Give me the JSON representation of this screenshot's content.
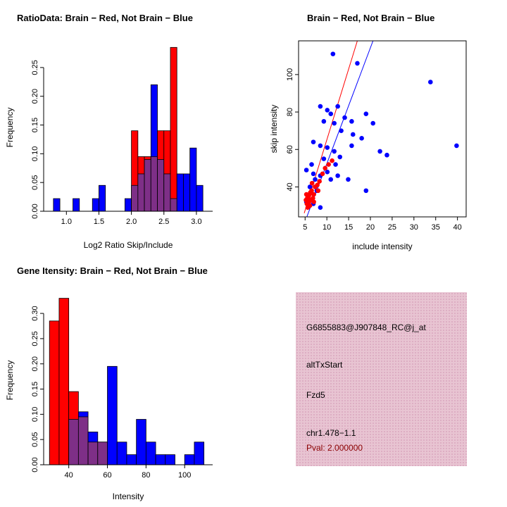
{
  "colors": {
    "red": "#FF0000",
    "blue": "#0000FF",
    "overlap": "#7E2F87",
    "axis": "#000000"
  },
  "chart_data": [
    {
      "id": "ratio_hist",
      "type": "bar",
      "title": "RatioData: Brain − Red, Not Brain − Blue",
      "xlabel": "Log2 Ratio Skip/Include",
      "ylabel": "Frequency",
      "xlim": [
        0.65,
        3.25
      ],
      "ylim": [
        0,
        0.2915
      ],
      "bin_width": 0.1,
      "xticks": [
        [
          1.0,
          "1.0"
        ],
        [
          1.5,
          "1.5"
        ],
        [
          2.0,
          "2.0"
        ],
        [
          2.5,
          "2.5"
        ],
        [
          3.0,
          "3.0"
        ]
      ],
      "yticks": [
        [
          0,
          "0.00"
        ],
        [
          0.05,
          "0.05"
        ],
        [
          0.1,
          "0.10"
        ],
        [
          0.15,
          "0.15"
        ],
        [
          0.2,
          "0.20"
        ],
        [
          0.25,
          "0.25"
        ]
      ],
      "series": [
        {
          "name": "Not Brain",
          "color": "blue",
          "bins": [
            [
              0.8,
              0.022
            ],
            [
              1.1,
              0.022
            ],
            [
              1.4,
              0.022
            ],
            [
              1.5,
              0.045
            ],
            [
              1.9,
              0.022
            ],
            [
              2.0,
              0.045
            ],
            [
              2.1,
              0.065
            ],
            [
              2.2,
              0.09
            ],
            [
              2.3,
              0.22
            ],
            [
              2.4,
              0.09
            ],
            [
              2.5,
              0.065
            ],
            [
              2.6,
              0.022
            ],
            [
              2.7,
              0.065
            ],
            [
              2.8,
              0.065
            ],
            [
              2.9,
              0.11
            ],
            [
              3.0,
              0.045
            ]
          ]
        },
        {
          "name": "Brain",
          "color": "red",
          "bins": [
            [
              2.0,
              0.14
            ],
            [
              2.1,
              0.095
            ],
            [
              2.2,
              0.095
            ],
            [
              2.3,
              0.095
            ],
            [
              2.4,
              0.14
            ],
            [
              2.5,
              0.14
            ],
            [
              2.6,
              0.285
            ]
          ]
        }
      ]
    },
    {
      "id": "scatter",
      "type": "scatter",
      "title": "Brain − Red, Not Brain − Blue",
      "xlabel": "include intensity",
      "ylabel": "skip intensity",
      "xlim": [
        3.5,
        42
      ],
      "ylim": [
        24,
        118
      ],
      "xticks": [
        [
          5,
          "5"
        ],
        [
          10,
          "10"
        ],
        [
          15,
          "15"
        ],
        [
          20,
          "20"
        ],
        [
          25,
          "25"
        ],
        [
          30,
          "30"
        ],
        [
          35,
          "35"
        ],
        [
          40,
          "40"
        ]
      ],
      "yticks": [
        [
          40,
          "40"
        ],
        [
          60,
          "60"
        ],
        [
          80,
          "80"
        ],
        [
          100,
          "100"
        ]
      ],
      "series": [
        {
          "name": "Not Brain",
          "color": "blue",
          "points": [
            [
              11.4,
              111
            ],
            [
              17,
              106
            ],
            [
              33.8,
              96
            ],
            [
              39.8,
              62
            ],
            [
              8.5,
              83
            ],
            [
              10.1,
              81
            ],
            [
              10.9,
              79
            ],
            [
              12.5,
              83
            ],
            [
              14.1,
              77
            ],
            [
              15.7,
              75
            ],
            [
              19,
              79
            ],
            [
              20.6,
              74
            ],
            [
              9.3,
              75
            ],
            [
              11.7,
              74
            ],
            [
              13.3,
              70
            ],
            [
              6.9,
              64
            ],
            [
              8.5,
              62
            ],
            [
              10.1,
              61
            ],
            [
              11.7,
              59
            ],
            [
              15.7,
              62
            ],
            [
              22.2,
              59
            ],
            [
              23.8,
              57
            ],
            [
              9.3,
              55
            ],
            [
              13,
              56
            ],
            [
              16,
              68
            ],
            [
              18,
              66
            ],
            [
              5.3,
              49
            ],
            [
              6.9,
              47
            ],
            [
              8.5,
              46
            ],
            [
              10.1,
              48
            ],
            [
              10.9,
              44
            ],
            [
              12.5,
              46
            ],
            [
              14.9,
              44
            ],
            [
              19,
              38
            ],
            [
              6.1,
              40
            ],
            [
              7.7,
              38
            ],
            [
              7.3,
              44
            ],
            [
              6.5,
              52
            ],
            [
              12,
              52
            ],
            [
              5.3,
              32
            ],
            [
              6.9,
              31
            ],
            [
              8.5,
              29
            ]
          ]
        },
        {
          "name": "Brain",
          "color": "red",
          "points": [
            [
              5.2,
              33
            ],
            [
              5.5,
              34
            ],
            [
              5.8,
              35
            ],
            [
              6,
              36
            ],
            [
              6.2,
              37
            ],
            [
              6.5,
              38
            ],
            [
              5.4,
              31
            ],
            [
              5.9,
              32
            ],
            [
              6.3,
              33
            ],
            [
              6.8,
              34
            ],
            [
              7,
              36
            ],
            [
              7.3,
              40
            ],
            [
              7.8,
              41
            ],
            [
              8.3,
              43
            ],
            [
              9,
              47
            ],
            [
              9.6,
              50
            ],
            [
              10.4,
              52
            ],
            [
              11.2,
              54
            ],
            [
              5.6,
              29
            ],
            [
              6.1,
              30
            ],
            [
              7,
              32
            ],
            [
              8,
              38
            ],
            [
              6.6,
              42
            ],
            [
              5.3,
              36
            ]
          ]
        }
      ],
      "fit_lines": [
        {
          "color": "red",
          "p1": [
            4.8,
            26
          ],
          "p2": [
            17,
            118
          ]
        },
        {
          "color": "blue",
          "p1": [
            5.4,
            24
          ],
          "p2": [
            20.6,
            118
          ]
        }
      ]
    },
    {
      "id": "gene_hist",
      "type": "bar",
      "title": "Gene Itensity: Brain − Red, Not Brain − Blue",
      "xlabel": "Intensity",
      "ylabel": "Frequency",
      "xlim": [
        27,
        114.5
      ],
      "ylim": [
        0,
        0.335
      ],
      "bin_width": 5,
      "xticks": [
        [
          40,
          "40"
        ],
        [
          60,
          "60"
        ],
        [
          80,
          "80"
        ],
        [
          100,
          "100"
        ]
      ],
      "yticks": [
        [
          0,
          "0.00"
        ],
        [
          0.05,
          "0.05"
        ],
        [
          0.1,
          "0.10"
        ],
        [
          0.15,
          "0.15"
        ],
        [
          0.2,
          "0.20"
        ],
        [
          0.25,
          "0.25"
        ],
        [
          0.3,
          "0.30"
        ]
      ],
      "series": [
        {
          "name": "Not Brain",
          "color": "blue",
          "bins": [
            [
              40,
              0.09
            ],
            [
              45,
              0.105
            ],
            [
              50,
              0.065
            ],
            [
              55,
              0.045
            ],
            [
              60,
              0.195
            ],
            [
              65,
              0.045
            ],
            [
              70,
              0.02
            ],
            [
              75,
              0.09
            ],
            [
              80,
              0.045
            ],
            [
              85,
              0.02
            ],
            [
              90,
              0.02
            ],
            [
              100,
              0.02
            ],
            [
              105,
              0.045
            ]
          ]
        },
        {
          "name": "Brain",
          "color": "red",
          "bins": [
            [
              30,
              0.285
            ],
            [
              35,
              0.33
            ],
            [
              40,
              0.145
            ],
            [
              45,
              0.095
            ],
            [
              50,
              0.045
            ],
            [
              55,
              0.045
            ]
          ]
        }
      ]
    }
  ],
  "info_box": {
    "probe_id": "G6855883@J907848_RC@j_at",
    "event_type": "altTxStart",
    "gene": "Fzd5",
    "location": "chr1.478−1.1",
    "pval": "Pval: 2.000000",
    "bg_color": "#E8C4D2",
    "pval_color": "#8B0000"
  }
}
